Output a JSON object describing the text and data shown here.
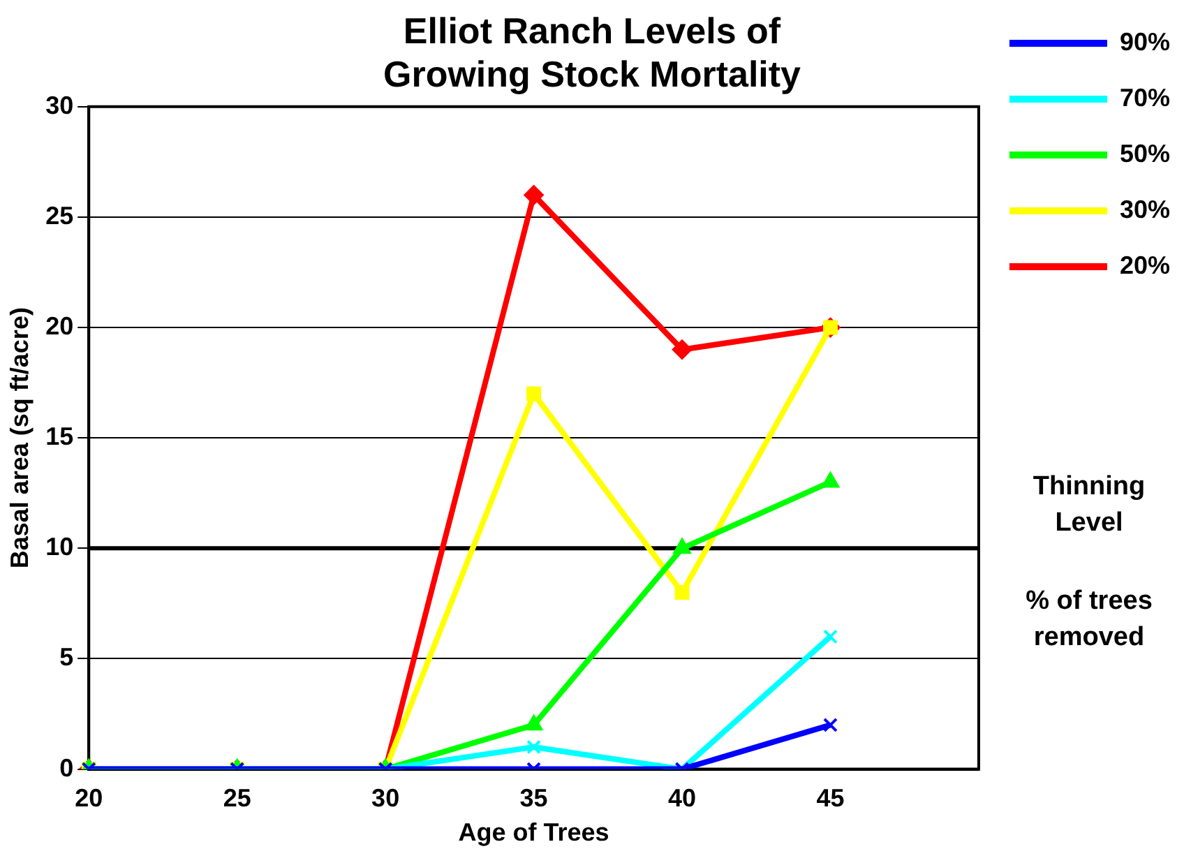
{
  "chart_data": {
    "type": "line",
    "title": "Elliot Ranch Levels of Growing Stock Mortality",
    "xlabel": "Age of Trees",
    "ylabel": "Basal area (sq ft/acre)",
    "categories": [
      "20",
      "25",
      "30",
      "35",
      "40",
      "45",
      null
    ],
    "series": [
      {
        "name": "90%",
        "color": "#0000ff",
        "marker": "cross",
        "values": [
          0,
          0,
          0,
          0,
          0,
          2,
          null
        ]
      },
      {
        "name": "70%",
        "color": "#00ffff",
        "marker": "cross",
        "values": [
          0,
          0,
          0,
          1,
          0,
          6,
          null
        ]
      },
      {
        "name": "50%",
        "color": "#00ff00",
        "marker": "triangle",
        "values": [
          0,
          0,
          0,
          2,
          10,
          13,
          null
        ]
      },
      {
        "name": "30%",
        "color": "#ffff00",
        "marker": "square",
        "values": [
          0,
          0,
          0,
          17,
          8,
          20,
          null
        ]
      },
      {
        "name": "20%",
        "color": "#ff0000",
        "marker": "diamond",
        "values": [
          0,
          0,
          0,
          26,
          19,
          20,
          null
        ]
      }
    ],
    "ylim": [
      0,
      30
    ],
    "yticks": [
      0,
      5,
      10,
      15,
      20,
      25,
      30
    ],
    "grid": "y",
    "legend": "top right",
    "legend_title": "Thinning Level",
    "annotations": [
      "% of trees removed"
    ],
    "ref_lines": [
      {
        "axis": "y",
        "value": 10,
        "color": "#000000"
      }
    ],
    "line_style": "solid"
  }
}
